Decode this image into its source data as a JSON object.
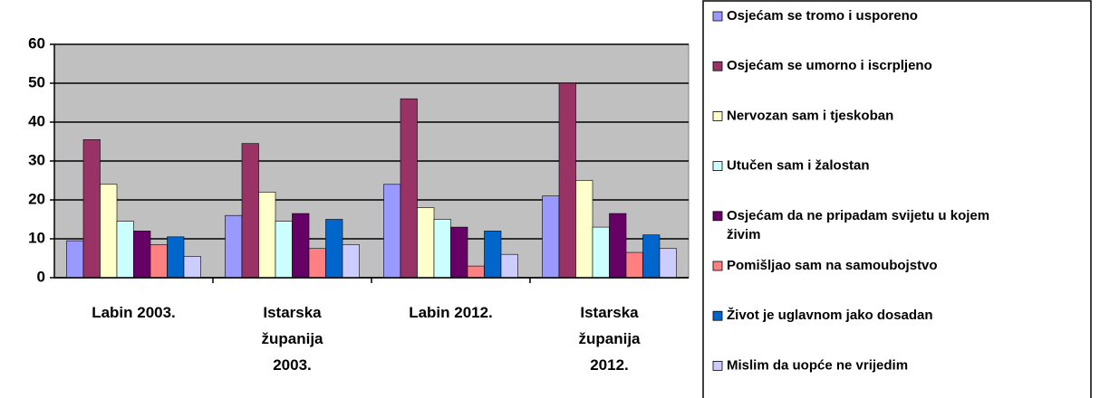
{
  "chart_data": {
    "type": "bar",
    "categories": [
      "Labin 2003.",
      "Istarska županija 2003.",
      "Labin 2012.",
      "Istarska županija 2012."
    ],
    "series": [
      {
        "name": "Osjećam se tromo i usporeno",
        "color": "#9999ff",
        "values": [
          9.5,
          16,
          24,
          21
        ]
      },
      {
        "name": "Osjećam se umorno i iscrpljeno",
        "color": "#993366",
        "values": [
          35.5,
          34.5,
          46,
          50
        ]
      },
      {
        "name": "Nervozan sam i tjeskoban",
        "color": "#ffffcc",
        "values": [
          24,
          22,
          18,
          25
        ]
      },
      {
        "name": "Utučen sam i žalostan",
        "color": "#ccffff",
        "values": [
          14.5,
          14.5,
          15,
          13
        ]
      },
      {
        "name": "Osjećam da ne pripadam svijetu u kojem živim",
        "color": "#660066",
        "values": [
          12,
          16.5,
          13,
          16.5
        ]
      },
      {
        "name": "Pomišljao sam na samoubojstvo",
        "color": "#ff8080",
        "values": [
          8.5,
          7.5,
          3,
          6.5
        ]
      },
      {
        "name": "Život je uglavnom jako dosadan",
        "color": "#0066cc",
        "values": [
          10.5,
          15,
          12,
          11
        ]
      },
      {
        "name": "Mislim da uopće ne vrijedim",
        "color": "#ccccff",
        "values": [
          5.5,
          8.5,
          6,
          7.5
        ]
      }
    ],
    "ylim": [
      0,
      60
    ],
    "yticks": [
      0,
      10,
      20,
      30,
      40,
      50,
      60
    ],
    "grid": true,
    "legend": "right"
  }
}
